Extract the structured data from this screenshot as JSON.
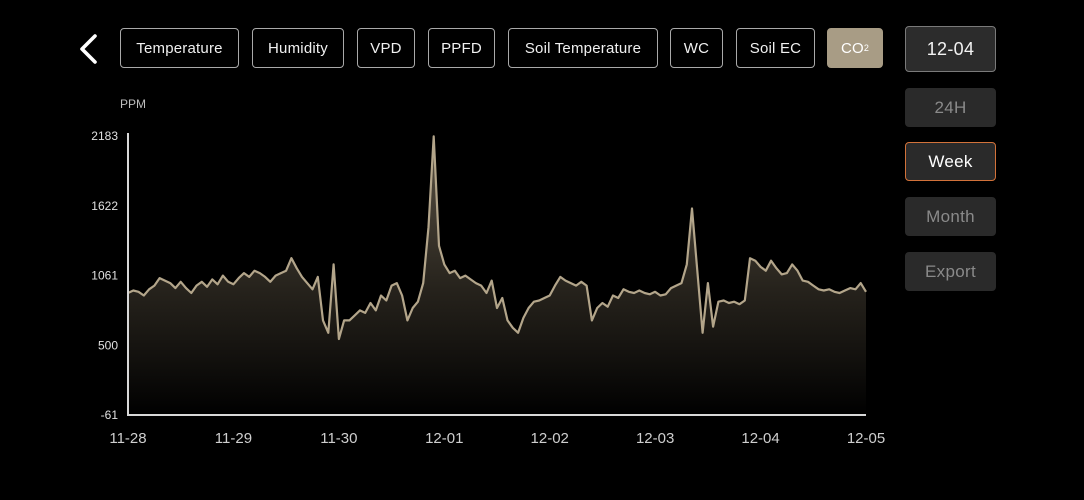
{
  "tabs": [
    {
      "label": "Temperature",
      "active": false
    },
    {
      "label": "Humidity",
      "active": false
    },
    {
      "label": "VPD",
      "active": false
    },
    {
      "label": "PPFD",
      "active": false
    },
    {
      "label": "Soil Temperature",
      "active": false
    },
    {
      "label": "WC",
      "active": false
    },
    {
      "label": "Soil EC",
      "active": false
    },
    {
      "label": "CO",
      "label_sub": "2",
      "active": true
    }
  ],
  "date_button": "12-04",
  "ranges": [
    {
      "label": "24H",
      "active": false
    },
    {
      "label": "Week",
      "active": true
    },
    {
      "label": "Month",
      "active": false
    },
    {
      "label": "Export",
      "active": false
    }
  ],
  "colors": {
    "accent": "#a89c85",
    "line": "#b3a58a",
    "active_border": "#d2723a"
  },
  "chart_data": {
    "type": "area",
    "ylabel": "PPM",
    "ylim": [
      -61,
      2183
    ],
    "yticks": [
      "2183",
      "1622",
      "1061",
      "500",
      "-61"
    ],
    "xticks": [
      "11-28",
      "11-29",
      "11-30",
      "12-01",
      "12-02",
      "12-03",
      "12-04",
      "12-05"
    ],
    "x": [
      0,
      0.05,
      0.1,
      0.15,
      0.2,
      0.25,
      0.3,
      0.35,
      0.4,
      0.45,
      0.5,
      0.55,
      0.6,
      0.65,
      0.7,
      0.75,
      0.8,
      0.85,
      0.9,
      0.95,
      1.0,
      1.05,
      1.1,
      1.15,
      1.2,
      1.25,
      1.3,
      1.35,
      1.4,
      1.45,
      1.5,
      1.55,
      1.6,
      1.65,
      1.7,
      1.75,
      1.8,
      1.85,
      1.9,
      1.95,
      2.0,
      2.05,
      2.1,
      2.15,
      2.2,
      2.25,
      2.3,
      2.35,
      2.4,
      2.45,
      2.5,
      2.55,
      2.6,
      2.65,
      2.7,
      2.75,
      2.8,
      2.85,
      2.9,
      2.95,
      3.0,
      3.05,
      3.1,
      3.15,
      3.2,
      3.25,
      3.3,
      3.35,
      3.4,
      3.45,
      3.5,
      3.55,
      3.6,
      3.65,
      3.7,
      3.75,
      3.8,
      3.85,
      3.9,
      3.95,
      4.0,
      4.05,
      4.1,
      4.15,
      4.2,
      4.25,
      4.3,
      4.35,
      4.4,
      4.45,
      4.5,
      4.55,
      4.6,
      4.65,
      4.7,
      4.75,
      4.8,
      4.85,
      4.9,
      4.95,
      5.0,
      5.05,
      5.1,
      5.15,
      5.2,
      5.25,
      5.3,
      5.35,
      5.4,
      5.45,
      5.5,
      5.55,
      5.6,
      5.65,
      5.7,
      5.75,
      5.8,
      5.85,
      5.9,
      5.95,
      6.0,
      6.05,
      6.1,
      6.15,
      6.2,
      6.25,
      6.3,
      6.35,
      6.4,
      6.45,
      6.5,
      6.55,
      6.6,
      6.65,
      6.7,
      6.75,
      6.8,
      6.85,
      6.9,
      6.95,
      7.0
    ],
    "values": [
      920,
      940,
      930,
      900,
      950,
      980,
      1040,
      1020,
      1000,
      960,
      1010,
      960,
      920,
      980,
      1010,
      970,
      1030,
      990,
      1060,
      1010,
      990,
      1040,
      1080,
      1050,
      1100,
      1080,
      1050,
      1010,
      1060,
      1080,
      1100,
      1200,
      1120,
      1050,
      1000,
      950,
      1050,
      700,
      600,
      1150,
      550,
      700,
      700,
      740,
      780,
      760,
      840,
      780,
      900,
      860,
      980,
      1000,
      900,
      700,
      800,
      850,
      1000,
      1450,
      2180,
      1300,
      1150,
      1080,
      1100,
      1040,
      1060,
      1030,
      1000,
      980,
      920,
      1020,
      800,
      880,
      700,
      640,
      600,
      720,
      800,
      850,
      860,
      880,
      900,
      980,
      1050,
      1020,
      1000,
      980,
      1010,
      980,
      700,
      800,
      840,
      810,
      900,
      880,
      950,
      930,
      920,
      940,
      920,
      910,
      930,
      900,
      910,
      960,
      980,
      1000,
      1150,
      1600,
      1100,
      600,
      1000,
      650,
      850,
      860,
      840,
      850,
      830,
      860,
      1200,
      1180,
      1130,
      1100,
      1180,
      1120,
      1070,
      1080,
      1150,
      1100,
      1020,
      1010,
      980,
      950,
      940,
      950,
      930,
      920,
      940,
      960,
      950,
      1000,
      930
    ]
  }
}
